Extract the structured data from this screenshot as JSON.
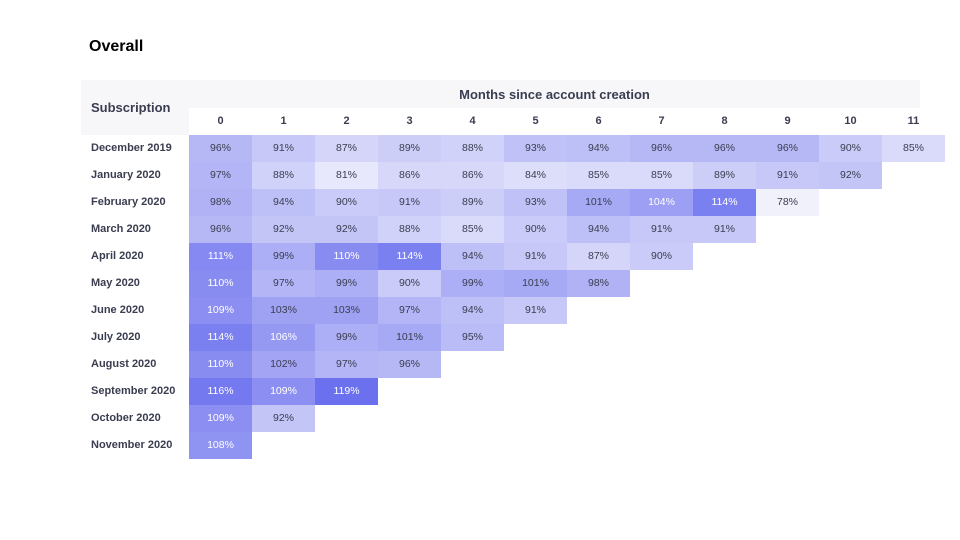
{
  "page_title": "Overall",
  "chart_data": {
    "type": "heatmap",
    "title": "Overall",
    "row_header": "Subscription",
    "column_header": "Months since account creation",
    "columns": [
      "0",
      "1",
      "2",
      "3",
      "4",
      "5",
      "6",
      "7",
      "8",
      "9",
      "10",
      "11"
    ],
    "rows": [
      {
        "label": "December 2019",
        "values": [
          "96%",
          "91%",
          "87%",
          "89%",
          "88%",
          "93%",
          "94%",
          "96%",
          "96%",
          "96%",
          "90%",
          "85%"
        ]
      },
      {
        "label": "January 2020",
        "values": [
          "97%",
          "88%",
          "81%",
          "86%",
          "86%",
          "84%",
          "85%",
          "85%",
          "89%",
          "91%",
          "92%"
        ]
      },
      {
        "label": "February 2020",
        "values": [
          "98%",
          "94%",
          "90%",
          "91%",
          "89%",
          "93%",
          "101%",
          "104%",
          "114%",
          "78%"
        ]
      },
      {
        "label": "March 2020",
        "values": [
          "96%",
          "92%",
          "92%",
          "88%",
          "85%",
          "90%",
          "94%",
          "91%",
          "91%"
        ]
      },
      {
        "label": "April 2020",
        "values": [
          "111%",
          "99%",
          "110%",
          "114%",
          "94%",
          "91%",
          "87%",
          "90%"
        ]
      },
      {
        "label": "May 2020",
        "values": [
          "110%",
          "97%",
          "99%",
          "90%",
          "99%",
          "101%",
          "98%"
        ]
      },
      {
        "label": "June 2020",
        "values": [
          "109%",
          "103%",
          "103%",
          "97%",
          "94%",
          "91%"
        ]
      },
      {
        "label": "July 2020",
        "values": [
          "114%",
          "106%",
          "99%",
          "101%",
          "95%"
        ]
      },
      {
        "label": "August 2020",
        "values": [
          "110%",
          "102%",
          "97%",
          "96%"
        ]
      },
      {
        "label": "September 2020",
        "values": [
          "116%",
          "109%",
          "119%"
        ]
      },
      {
        "label": "October 2020",
        "values": [
          "109%",
          "92%"
        ]
      },
      {
        "label": "November 2020",
        "values": [
          "108%"
        ]
      }
    ],
    "color_scale": {
      "low": "#f1f1fc",
      "high": "#6b70ee",
      "domain": [
        78,
        119
      ]
    }
  }
}
